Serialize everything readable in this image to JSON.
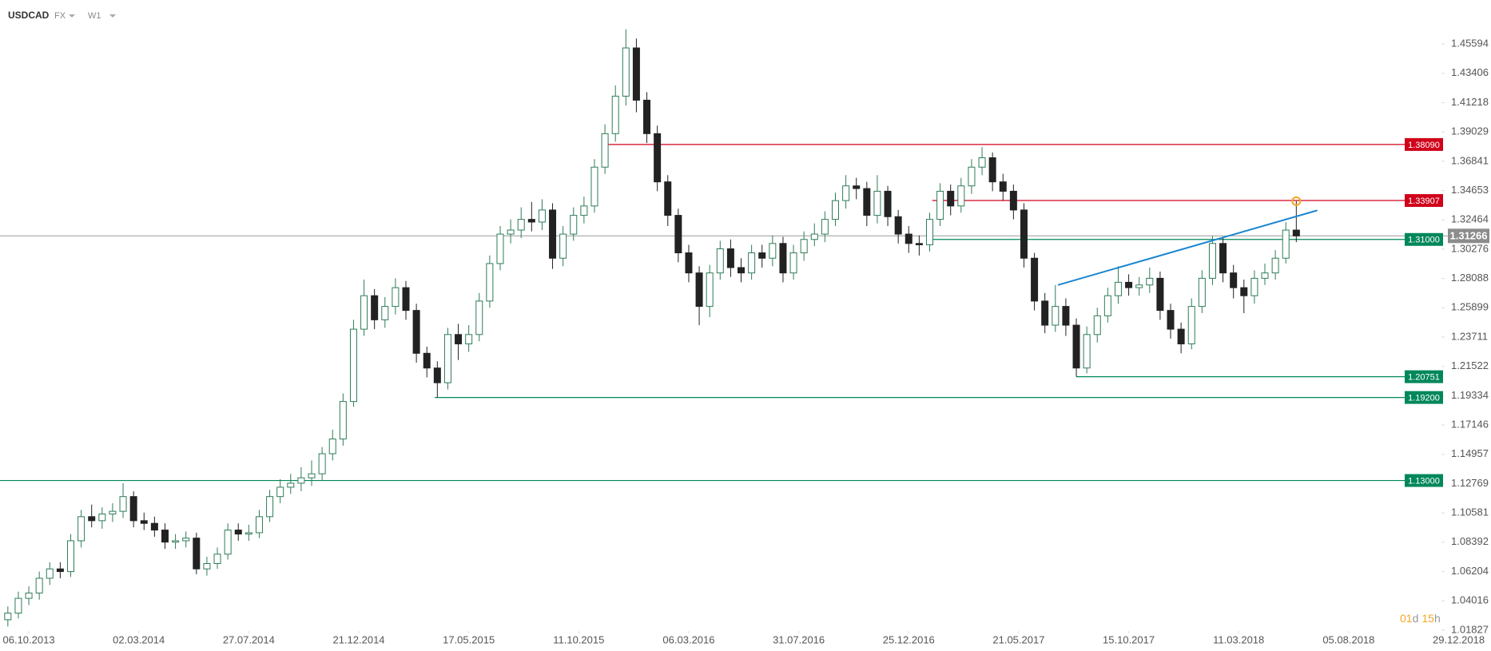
{
  "chart_data": {
    "type": "candlestick",
    "title": "USDCAD",
    "market": "FX",
    "interval": "W1",
    "x": [
      -4,
      -2,
      0,
      2,
      4,
      6,
      8,
      10,
      12,
      14,
      16,
      18,
      20,
      22,
      24,
      26,
      28,
      30,
      32,
      34,
      36,
      38,
      40,
      42,
      44,
      46,
      48,
      50,
      52,
      54,
      56,
      58,
      60,
      62,
      64,
      66,
      68,
      70,
      72,
      74,
      76,
      78,
      80,
      82,
      84,
      86,
      88,
      90,
      92,
      94,
      96,
      98,
      100,
      102,
      104,
      106,
      108,
      110,
      112,
      114,
      116,
      118,
      120,
      122,
      124,
      126,
      128,
      130,
      132,
      134,
      136,
      138,
      140,
      142,
      144,
      146,
      148,
      150,
      152,
      154,
      156,
      158,
      160,
      162,
      164,
      166,
      168,
      170,
      172,
      174,
      176,
      178,
      180,
      182,
      184,
      186,
      188,
      190,
      192,
      194,
      196,
      198,
      200,
      202,
      204,
      206,
      208,
      210,
      212,
      214,
      216,
      218,
      220,
      222,
      224,
      226,
      228,
      230,
      232,
      234,
      236,
      238,
      240,
      242
    ],
    "open": [
      1.026,
      1.031,
      1.042,
      1.046,
      1.057,
      1.064,
      1.062,
      1.085,
      1.103,
      1.1,
      1.105,
      1.107,
      1.118,
      1.1,
      1.098,
      1.093,
      1.084,
      1.085,
      1.087,
      1.064,
      1.068,
      1.075,
      1.093,
      1.09,
      1.091,
      1.103,
      1.118,
      1.125,
      1.128,
      1.132,
      1.135,
      1.15,
      1.161,
      1.189,
      1.243,
      1.268,
      1.25,
      1.26,
      1.274,
      1.257,
      1.225,
      1.214,
      1.203,
      1.239,
      1.232,
      1.239,
      1.264,
      1.292,
      1.314,
      1.317,
      1.325,
      1.323,
      1.332,
      1.296,
      1.314,
      1.328,
      1.335,
      1.364,
      1.389,
      1.417,
      1.453,
      1.414,
      1.389,
      1.353,
      1.328,
      1.3,
      1.285,
      1.26,
      1.285,
      1.303,
      1.289,
      1.285,
      1.3,
      1.296,
      1.307,
      1.285,
      1.3,
      1.31,
      1.314,
      1.325,
      1.339,
      1.35,
      1.348,
      1.328,
      1.346,
      1.327,
      1.314,
      1.307,
      1.306,
      1.325,
      1.346,
      1.335,
      1.35,
      1.364,
      1.371,
      1.353,
      1.346,
      1.332,
      1.296,
      1.264,
      1.246,
      1.26,
      1.246,
      1.214,
      1.239,
      1.253,
      1.268,
      1.278,
      1.274,
      1.276,
      1.281,
      1.257,
      1.243,
      1.232,
      1.26,
      1.281,
      1.307,
      1.285,
      1.274,
      1.268,
      1.281,
      1.285,
      1.296,
      1.317
    ],
    "high": [
      1.036,
      1.047,
      1.051,
      1.062,
      1.069,
      1.069,
      1.09,
      1.108,
      1.112,
      1.11,
      1.113,
      1.128,
      1.122,
      1.106,
      1.103,
      1.098,
      1.09,
      1.092,
      1.091,
      1.073,
      1.08,
      1.098,
      1.098,
      1.097,
      1.108,
      1.123,
      1.131,
      1.135,
      1.14,
      1.145,
      1.155,
      1.168,
      1.195,
      1.25,
      1.28,
      1.273,
      1.267,
      1.281,
      1.279,
      1.262,
      1.23,
      1.219,
      1.244,
      1.247,
      1.246,
      1.27,
      1.298,
      1.32,
      1.325,
      1.334,
      1.338,
      1.34,
      1.337,
      1.32,
      1.334,
      1.342,
      1.37,
      1.396,
      1.425,
      1.467,
      1.46,
      1.42,
      1.395,
      1.358,
      1.333,
      1.306,
      1.29,
      1.291,
      1.309,
      1.31,
      1.296,
      1.306,
      1.306,
      1.313,
      1.312,
      1.306,
      1.316,
      1.322,
      1.331,
      1.345,
      1.358,
      1.356,
      1.353,
      1.358,
      1.35,
      1.332,
      1.32,
      1.313,
      1.33,
      1.352,
      1.351,
      1.356,
      1.37,
      1.379,
      1.375,
      1.359,
      1.351,
      1.337,
      1.3,
      1.27,
      1.276,
      1.266,
      1.251,
      1.245,
      1.259,
      1.274,
      1.29,
      1.284,
      1.282,
      1.289,
      1.286,
      1.262,
      1.248,
      1.266,
      1.287,
      1.3125,
      1.312,
      1.291,
      1.28,
      1.287,
      1.292,
      1.302,
      1.323,
      1.3386
    ],
    "low": [
      1.021,
      1.027,
      1.037,
      1.041,
      1.052,
      1.057,
      1.058,
      1.08,
      1.095,
      1.094,
      1.099,
      1.102,
      1.095,
      1.093,
      1.088,
      1.079,
      1.079,
      1.08,
      1.06,
      1.059,
      1.064,
      1.071,
      1.085,
      1.085,
      1.087,
      1.099,
      1.113,
      1.12,
      1.122,
      1.126,
      1.13,
      1.145,
      1.156,
      1.185,
      1.238,
      1.243,
      1.244,
      1.254,
      1.25,
      1.218,
      1.207,
      1.192,
      1.198,
      1.22,
      1.226,
      1.234,
      1.259,
      1.287,
      1.307,
      1.311,
      1.316,
      1.317,
      1.288,
      1.29,
      1.309,
      1.322,
      1.33,
      1.359,
      1.383,
      1.41,
      1.405,
      1.382,
      1.346,
      1.32,
      1.293,
      1.278,
      1.246,
      1.252,
      1.28,
      1.282,
      1.278,
      1.28,
      1.289,
      1.29,
      1.278,
      1.28,
      1.294,
      1.305,
      1.308,
      1.32,
      1.333,
      1.34,
      1.32,
      1.322,
      1.32,
      1.307,
      1.3,
      1.298,
      1.301,
      1.32,
      1.328,
      1.33,
      1.344,
      1.358,
      1.346,
      1.339,
      1.325,
      1.289,
      1.257,
      1.24,
      1.241,
      1.238,
      1.2075,
      1.21,
      1.233,
      1.248,
      1.262,
      1.268,
      1.268,
      1.27,
      1.25,
      1.236,
      1.225,
      1.228,
      1.255,
      1.276,
      1.278,
      1.266,
      1.255,
      1.262,
      1.276,
      1.28,
      1.292,
      1.308
    ],
    "close": [
      1.031,
      1.042,
      1.046,
      1.057,
      1.064,
      1.062,
      1.085,
      1.103,
      1.1,
      1.105,
      1.107,
      1.118,
      1.1,
      1.098,
      1.093,
      1.084,
      1.085,
      1.087,
      1.064,
      1.068,
      1.075,
      1.093,
      1.09,
      1.091,
      1.103,
      1.118,
      1.125,
      1.128,
      1.132,
      1.135,
      1.15,
      1.161,
      1.189,
      1.243,
      1.268,
      1.25,
      1.26,
      1.274,
      1.257,
      1.225,
      1.214,
      1.203,
      1.239,
      1.232,
      1.239,
      1.264,
      1.292,
      1.314,
      1.317,
      1.325,
      1.323,
      1.332,
      1.296,
      1.314,
      1.328,
      1.335,
      1.364,
      1.389,
      1.417,
      1.453,
      1.414,
      1.389,
      1.353,
      1.328,
      1.3,
      1.285,
      1.26,
      1.285,
      1.303,
      1.289,
      1.285,
      1.3,
      1.296,
      1.307,
      1.285,
      1.3,
      1.31,
      1.314,
      1.325,
      1.339,
      1.35,
      1.348,
      1.328,
      1.346,
      1.327,
      1.314,
      1.307,
      1.306,
      1.325,
      1.346,
      1.335,
      1.35,
      1.364,
      1.371,
      1.353,
      1.346,
      1.332,
      1.296,
      1.264,
      1.246,
      1.26,
      1.246,
      1.214,
      1.239,
      1.253,
      1.268,
      1.278,
      1.274,
      1.276,
      1.281,
      1.257,
      1.243,
      1.232,
      1.26,
      1.281,
      1.307,
      1.285,
      1.274,
      1.268,
      1.281,
      1.285,
      1.296,
      1.317,
      1.31266
    ],
    "up_color": "#2f7d57",
    "down_color": "#222222",
    "xlim": [
      -5.5,
      268.8
    ],
    "xticks": [
      {
        "value": 0,
        "label": "06.10.2013"
      },
      {
        "value": 21,
        "label": "02.03.2014"
      },
      {
        "value": 42,
        "label": "27.07.2014"
      },
      {
        "value": 63,
        "label": "21.12.2014"
      },
      {
        "value": 84,
        "label": "17.05.2015"
      },
      {
        "value": 105,
        "label": "11.10.2015"
      },
      {
        "value": 126,
        "label": "06.03.2016"
      },
      {
        "value": 147,
        "label": "31.07.2016"
      },
      {
        "value": 168,
        "label": "25.12.2016"
      },
      {
        "value": 189,
        "label": "21.05.2017"
      },
      {
        "value": 210,
        "label": "15.10.2017"
      },
      {
        "value": 231,
        "label": "11.03.2018"
      },
      {
        "value": 252,
        "label": "05.08.2018"
      },
      {
        "value": 273,
        "label": "29.12.2018"
      }
    ],
    "ylim": [
      1.0176,
      1.4888
    ],
    "yticks": [
      1.45594,
      1.43406,
      1.41218,
      1.39029,
      1.36841,
      1.34653,
      1.32464,
      1.30276,
      1.28088,
      1.25899,
      1.23711,
      1.21522,
      1.19334,
      1.17146,
      1.14957,
      1.12769,
      1.10581,
      1.08392,
      1.06204,
      1.04016,
      1.01827
    ],
    "hlines": [
      {
        "value": 1.3809,
        "label": "1.38090",
        "color": "#d0021b",
        "x0": 110.5
      },
      {
        "value": 1.33907,
        "color": "#d0021b",
        "x0": 172.5
      },
      {
        "value": 1.31,
        "label": "1.31000",
        "color": "#00875a",
        "x0": 172.5
      },
      {
        "value": 1.20751,
        "color": "#00875a",
        "x0": 200
      },
      {
        "value": 1.192,
        "label": "1.19200",
        "color": "#00875a",
        "x0": 77.5
      },
      {
        "value": 1.13,
        "label": "1.13000",
        "color": "#00875a"
      }
    ],
    "trendline": {
      "x": [
        196.5,
        246
      ],
      "y": [
        1.276,
        1.3317
      ],
      "color": "#1a86d0"
    },
    "last_price": 1.31266,
    "countdown": [
      "01",
      "d",
      "15",
      "h"
    ]
  }
}
